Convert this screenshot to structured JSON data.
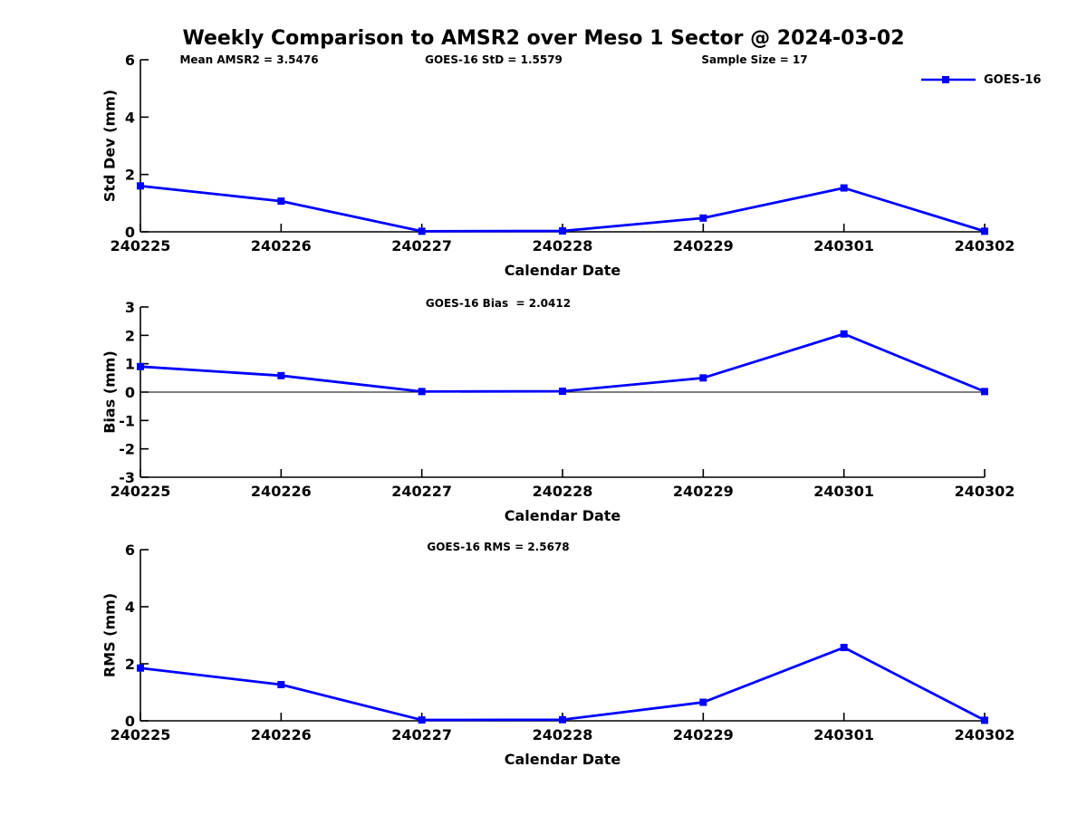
{
  "title": "Weekly Comparison to AMSR2 over Meso 1 Sector @ 2024-03-02",
  "legend": {
    "label": "GOES-16",
    "position": "top-right"
  },
  "stats": {
    "mean_amsr2": "3.5476",
    "goes16_std": "1.5579",
    "sample_size": "17",
    "goes16_bias": "2.0412",
    "goes16_rms": "2.5678"
  },
  "colors": {
    "series": "#0000FF",
    "axis": "#000000",
    "text": "#000000",
    "background": "#FFFFFF"
  },
  "chart_data": [
    {
      "type": "line",
      "panel": "std-dev",
      "annotations": [
        "Mean AMSR2 = 3.5476",
        "GOES-16 StD = 1.5579",
        "Sample Size = 17"
      ],
      "categories": [
        "240225",
        "240226",
        "240227",
        "240228",
        "240229",
        "240301",
        "240302"
      ],
      "series": [
        {
          "name": "GOES-16",
          "marker": "square",
          "values": [
            1.6,
            1.07,
            0.02,
            0.03,
            0.48,
            1.53,
            0.02
          ]
        }
      ],
      "xlabel": "Calendar Date",
      "ylabel": "Std Dev (mm)",
      "ylim": [
        0,
        6
      ],
      "yticks": [
        0,
        2,
        4,
        6
      ],
      "grid": false,
      "zero_line": false,
      "legend_visible": true
    },
    {
      "type": "line",
      "panel": "bias",
      "annotations": [
        "GOES-16 Bias  = 2.0412"
      ],
      "categories": [
        "240225",
        "240226",
        "240227",
        "240228",
        "240229",
        "240301",
        "240302"
      ],
      "series": [
        {
          "name": "GOES-16",
          "marker": "square",
          "values": [
            0.9,
            0.58,
            0.02,
            0.03,
            0.5,
            2.05,
            0.02
          ]
        }
      ],
      "xlabel": "Calendar Date",
      "ylabel": "Bias (mm)",
      "ylim": [
        -3,
        3
      ],
      "yticks": [
        -3,
        -2,
        -1,
        0,
        1,
        2,
        3
      ],
      "grid": false,
      "zero_line": true,
      "legend_visible": false
    },
    {
      "type": "line",
      "panel": "rms",
      "annotations": [
        "GOES-16 RMS = 2.5678"
      ],
      "categories": [
        "240225",
        "240226",
        "240227",
        "240228",
        "240229",
        "240301",
        "240302"
      ],
      "series": [
        {
          "name": "GOES-16",
          "marker": "square",
          "values": [
            1.85,
            1.27,
            0.03,
            0.04,
            0.65,
            2.57,
            0.02
          ]
        }
      ],
      "xlabel": "Calendar Date",
      "ylabel": "RMS (mm)",
      "ylim": [
        0,
        6
      ],
      "yticks": [
        0,
        2,
        4,
        6
      ],
      "grid": false,
      "zero_line": false,
      "legend_visible": false
    }
  ]
}
